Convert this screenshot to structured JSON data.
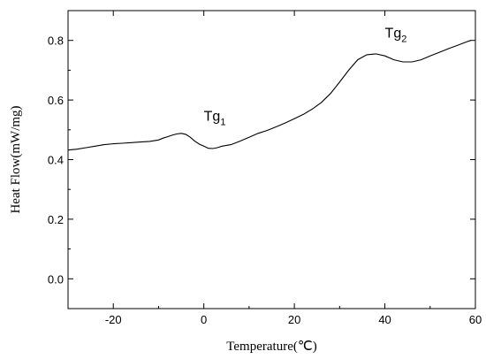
{
  "chart_data": {
    "type": "line",
    "title": "",
    "xlabel": "Temperature(℃)",
    "ylabel": "Heat Flow(mW/mg)",
    "xlim": [
      -30,
      60
    ],
    "ylim": [
      -0.1,
      0.9
    ],
    "xticks": [
      -20,
      0,
      20,
      40,
      60
    ],
    "xtick_labels": [
      "-20",
      "0",
      "20",
      "40",
      "60"
    ],
    "yticks": [
      0.0,
      0.2,
      0.4,
      0.6,
      0.8
    ],
    "ytick_labels": [
      "0.0",
      "0.2",
      "0.4",
      "0.6",
      "0.8"
    ],
    "grid": false,
    "legend": "none",
    "line_color": "#000000",
    "series": [
      {
        "x": [
          -30,
          -28,
          -26,
          -24,
          -22,
          -20,
          -18,
          -16,
          -14,
          -12,
          -10,
          -9,
          -8,
          -7,
          -6,
          -5,
          -4,
          -3,
          -2,
          -1,
          0,
          1,
          2,
          3,
          4,
          6,
          8,
          10,
          12,
          14,
          16,
          18,
          20,
          22,
          24,
          26,
          28,
          30,
          32,
          34,
          36,
          38,
          40,
          42,
          44,
          46,
          48,
          50,
          52,
          54,
          56,
          58,
          59
        ],
        "y": [
          0.432,
          0.435,
          0.44,
          0.445,
          0.45,
          0.453,
          0.455,
          0.457,
          0.459,
          0.461,
          0.466,
          0.472,
          0.477,
          0.482,
          0.486,
          0.488,
          0.485,
          0.475,
          0.462,
          0.452,
          0.445,
          0.438,
          0.437,
          0.44,
          0.445,
          0.45,
          0.462,
          0.475,
          0.488,
          0.498,
          0.51,
          0.523,
          0.537,
          0.552,
          0.57,
          0.592,
          0.622,
          0.66,
          0.7,
          0.735,
          0.752,
          0.755,
          0.748,
          0.735,
          0.728,
          0.728,
          0.735,
          0.748,
          0.76,
          0.772,
          0.783,
          0.795,
          0.8
        ]
      }
    ],
    "annotations": [
      {
        "label": "Tg",
        "subscript": "1",
        "x": 0,
        "y": 0.53
      },
      {
        "label": "Tg",
        "subscript": "2",
        "x": 40,
        "y": 0.81
      }
    ]
  }
}
